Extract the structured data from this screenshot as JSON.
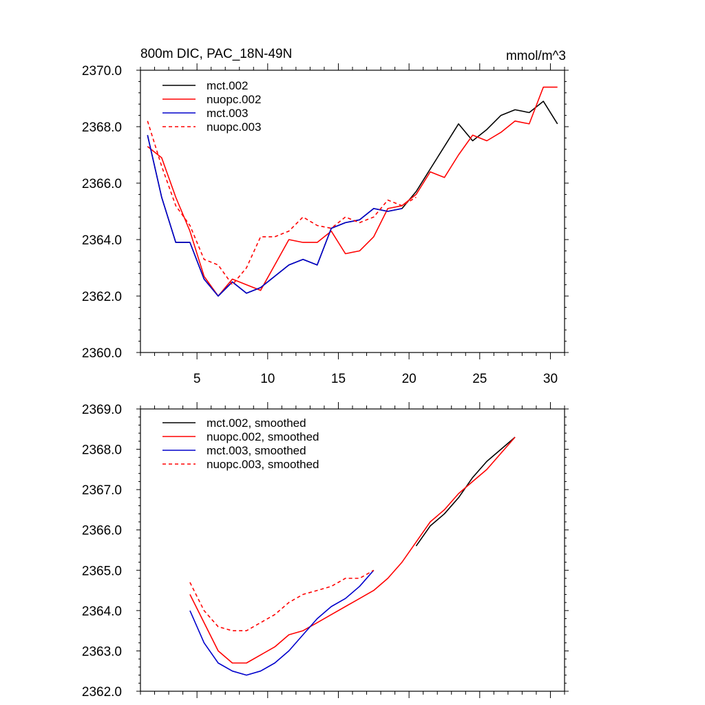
{
  "chart_data": [
    {
      "type": "line",
      "title": "800m DIC, PAC_18N-49N",
      "units_label": "mmol/m^3",
      "xlabel": "",
      "ylabel": "",
      "xlim": [
        1,
        31
      ],
      "ylim": [
        2360.0,
        2370.0
      ],
      "x_ticks": [
        "5",
        "10",
        "15",
        "20",
        "25",
        "30"
      ],
      "y_ticks": [
        "2360.0",
        "2362.0",
        "2364.0",
        "2366.0",
        "2368.0",
        "2370.0"
      ],
      "legend_position": "top-left",
      "series": [
        {
          "name": "mct.002",
          "color": "#000000",
          "dash": "solid",
          "x": [
            1.5,
            2.5,
            3.5,
            4.5,
            5.5,
            6.5,
            7.5,
            8.5,
            9.5,
            10.5,
            11.5,
            12.5,
            13.5,
            14.5,
            15.5,
            16.5,
            17.5,
            18.5,
            19.5,
            20.5,
            21.5,
            22.5,
            23.5,
            24.5,
            25.5,
            26.5,
            27.5,
            28.5,
            29.5,
            30.5
          ],
          "values": [
            2367.7,
            2365.5,
            2363.9,
            2363.9,
            2362.6,
            2362.0,
            2362.5,
            2362.1,
            2362.3,
            2362.7,
            2363.1,
            2363.3,
            2363.1,
            2364.4,
            2364.6,
            2364.7,
            2365.1,
            2365.0,
            2365.1,
            2365.7,
            2366.5,
            2367.3,
            2368.1,
            2367.5,
            2367.9,
            2368.4,
            2368.6,
            2368.5,
            2368.9,
            2368.1
          ]
        },
        {
          "name": "nuopc.002",
          "color": "#ff0000",
          "dash": "solid",
          "x": [
            1.5,
            2.5,
            3.5,
            4.5,
            5.5,
            6.5,
            7.5,
            8.5,
            9.5,
            10.5,
            11.5,
            12.5,
            13.5,
            14.5,
            15.5,
            16.5,
            17.5,
            18.5,
            19.5,
            20.5,
            21.5,
            22.5,
            23.5,
            24.5,
            25.5,
            26.5,
            27.5,
            28.5,
            29.5,
            30.5
          ],
          "values": [
            2367.3,
            2366.9,
            2365.5,
            2364.3,
            2362.7,
            2362.0,
            2362.6,
            2362.4,
            2362.2,
            2363.1,
            2364.0,
            2363.9,
            2363.9,
            2364.3,
            2363.5,
            2363.6,
            2364.1,
            2365.1,
            2365.2,
            2365.6,
            2366.4,
            2366.2,
            2367.0,
            2367.7,
            2367.5,
            2367.8,
            2368.2,
            2368.1,
            2369.4,
            2369.4
          ]
        },
        {
          "name": "mct.003",
          "color": "#0000cc",
          "dash": "solid",
          "x": [
            1.5,
            2.5,
            3.5,
            4.5,
            5.5,
            6.5,
            7.5,
            8.5,
            9.5,
            10.5,
            11.5,
            12.5,
            13.5,
            14.5,
            15.5,
            16.5,
            17.5,
            18.5,
            19.5
          ],
          "values": [
            2367.7,
            2365.5,
            2363.9,
            2363.9,
            2362.6,
            2362.0,
            2362.5,
            2362.1,
            2362.3,
            2362.7,
            2363.1,
            2363.3,
            2363.1,
            2364.4,
            2364.6,
            2364.7,
            2365.1,
            2365.0,
            2365.1
          ]
        },
        {
          "name": "nuopc.003",
          "color": "#ff0000",
          "dash": "dashed",
          "x": [
            1.5,
            2.5,
            3.5,
            4.5,
            5.5,
            6.5,
            7.5,
            8.5,
            9.5,
            10.5,
            11.5,
            12.5,
            13.5,
            14.5,
            15.5,
            16.5,
            17.5,
            18.5,
            19.5,
            20.5
          ],
          "values": [
            2368.2,
            2366.6,
            2365.2,
            2364.5,
            2363.3,
            2363.1,
            2362.4,
            2363.0,
            2364.1,
            2364.1,
            2364.3,
            2364.8,
            2364.5,
            2364.4,
            2364.8,
            2364.6,
            2364.8,
            2365.4,
            2365.2,
            2365.5
          ]
        }
      ]
    },
    {
      "type": "line",
      "title": "",
      "xlabel": "",
      "ylabel": "",
      "xlim": [
        1,
        31
      ],
      "ylim": [
        2362.0,
        2369.0
      ],
      "x_ticks": [
        "5",
        "10",
        "15",
        "20",
        "25",
        "30"
      ],
      "y_ticks": [
        "2362.0",
        "2363.0",
        "2364.0",
        "2365.0",
        "2366.0",
        "2367.0",
        "2368.0",
        "2369.0"
      ],
      "legend_position": "top-left",
      "series": [
        {
          "name": "mct.002, smoothed",
          "color": "#000000",
          "dash": "solid",
          "x": [
            20.5,
            21.5,
            22.5,
            23.5,
            24.5,
            25.5,
            26.5,
            27.5
          ],
          "values": [
            2365.6,
            2366.1,
            2366.4,
            2366.8,
            2367.3,
            2367.7,
            2368.0,
            2368.3
          ]
        },
        {
          "name": "nuopc.002, smoothed",
          "color": "#ff0000",
          "dash": "solid",
          "x": [
            4.5,
            5.5,
            6.5,
            7.5,
            8.5,
            9.5,
            10.5,
            11.5,
            12.5,
            13.5,
            14.5,
            15.5,
            16.5,
            17.5,
            18.5,
            19.5,
            20.5,
            21.5,
            22.5,
            23.5,
            24.5,
            25.5,
            26.5,
            27.5
          ],
          "values": [
            2364.4,
            2363.7,
            2363.0,
            2362.7,
            2362.7,
            2362.9,
            2363.1,
            2363.4,
            2363.5,
            2363.7,
            2363.9,
            2364.1,
            2364.3,
            2364.5,
            2364.8,
            2365.2,
            2365.7,
            2366.2,
            2366.5,
            2366.9,
            2367.2,
            2367.5,
            2367.9,
            2368.3
          ]
        },
        {
          "name": "mct.003, smoothed",
          "color": "#0000cc",
          "dash": "solid",
          "x": [
            4.5,
            5.5,
            6.5,
            7.5,
            8.5,
            9.5,
            10.5,
            11.5,
            12.5,
            13.5,
            14.5,
            15.5,
            16.5,
            17.5
          ],
          "values": [
            2364.0,
            2363.2,
            2362.7,
            2362.5,
            2362.4,
            2362.5,
            2362.7,
            2363.0,
            2363.4,
            2363.8,
            2364.1,
            2364.3,
            2364.6,
            2365.0
          ]
        },
        {
          "name": "nuopc.003, smoothed",
          "color": "#ff0000",
          "dash": "dashed",
          "x": [
            4.5,
            5.5,
            6.5,
            7.5,
            8.5,
            9.5,
            10.5,
            11.5,
            12.5,
            13.5,
            14.5,
            15.5,
            16.5,
            17.5
          ],
          "values": [
            2364.7,
            2364.0,
            2363.6,
            2363.5,
            2363.5,
            2363.7,
            2363.9,
            2364.2,
            2364.4,
            2364.5,
            2364.6,
            2364.8,
            2364.8,
            2365.0
          ]
        }
      ]
    }
  ]
}
